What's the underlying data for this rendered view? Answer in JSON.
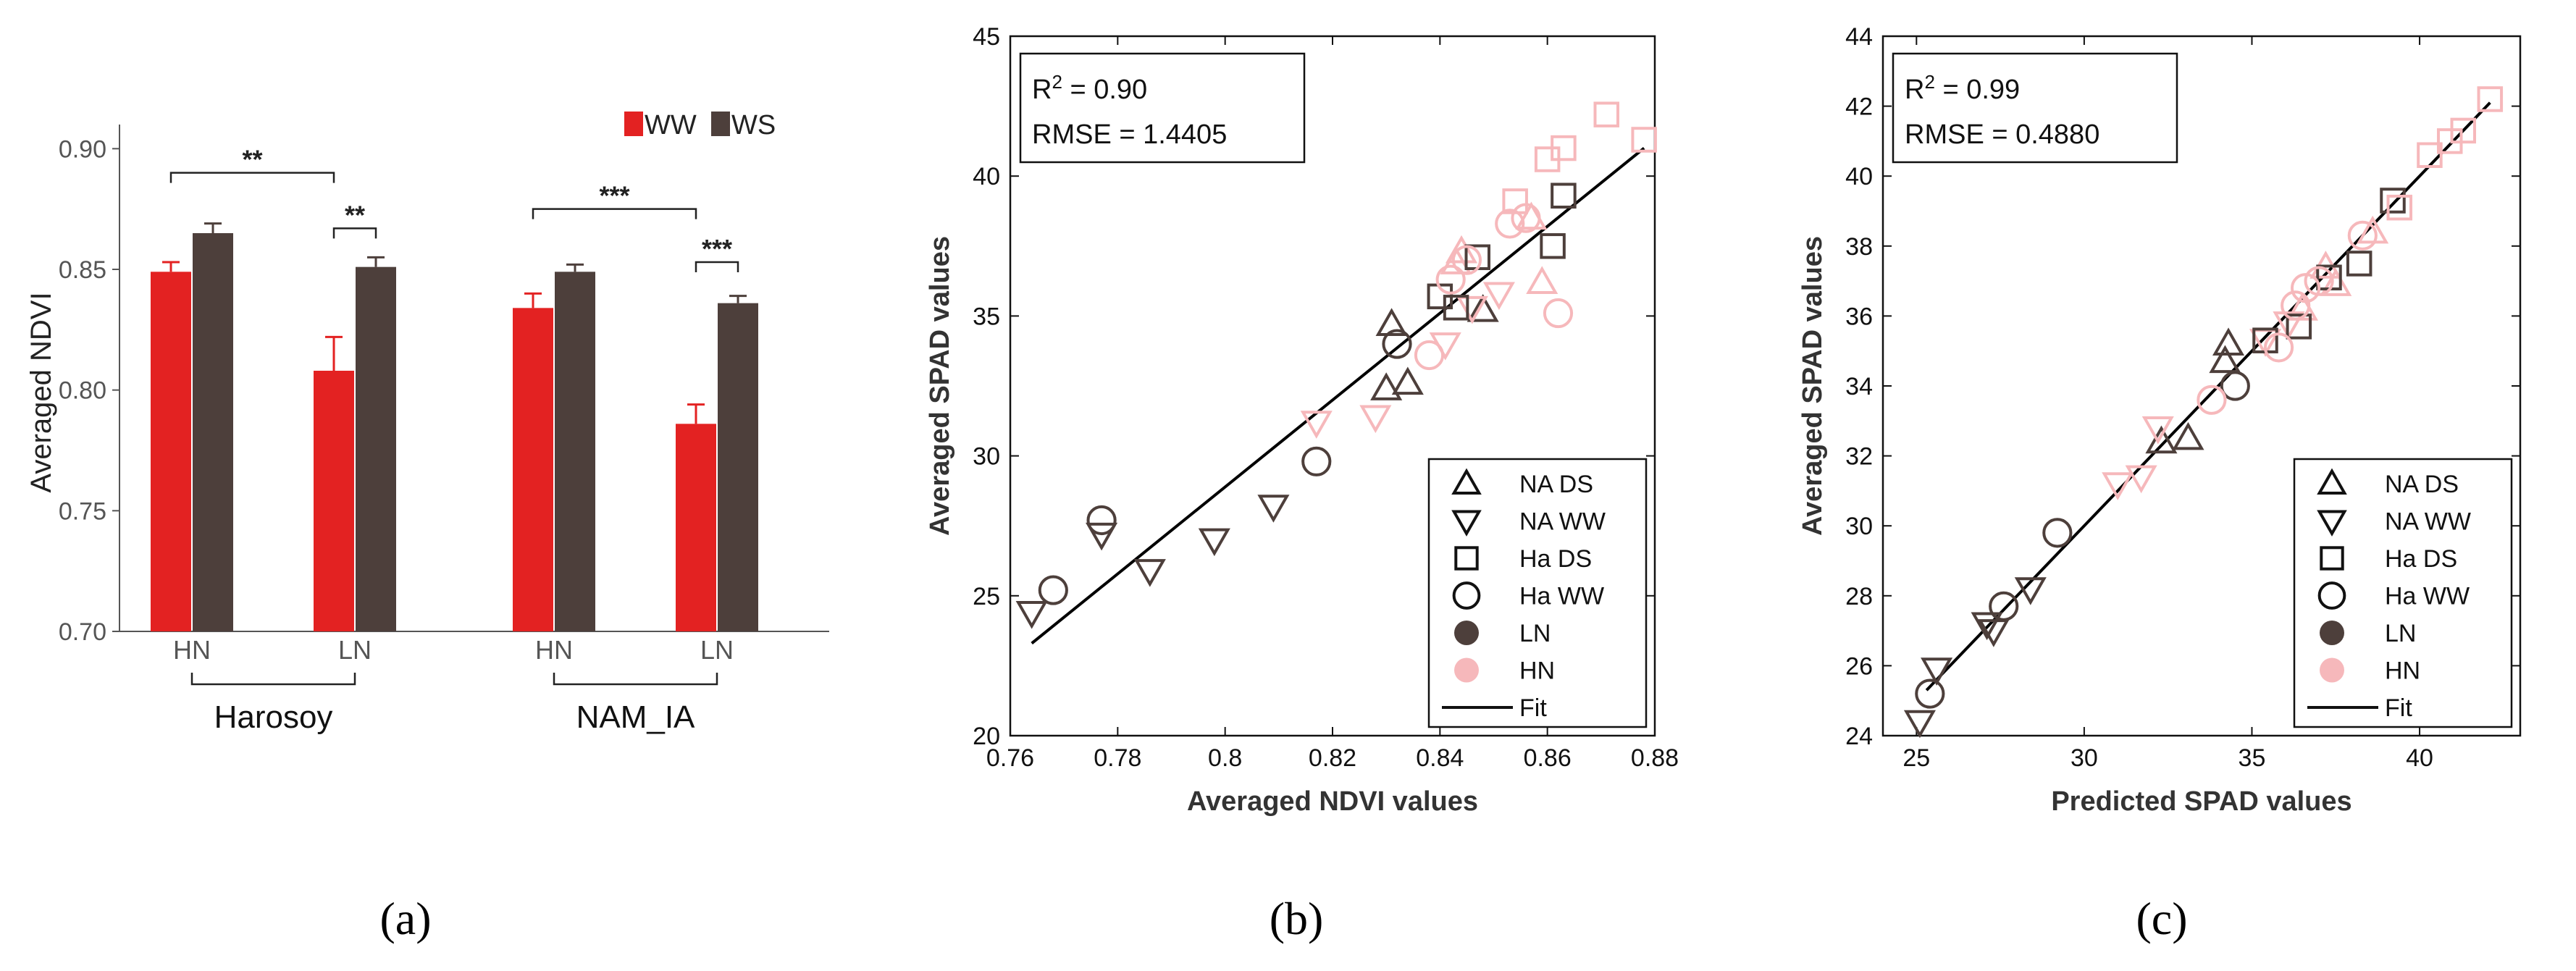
{
  "colors": {
    "ww_red": "#e32222",
    "ws_brown": "#4d3f3b",
    "ln_dark": "#4d3f3b",
    "hn_pink": "#f6b8bb",
    "fit_black": "#000000",
    "axis_gray": "#555555"
  },
  "panels": [
    {
      "label": "(a)"
    },
    {
      "label": "(b)"
    },
    {
      "label": "(c)"
    }
  ],
  "chart_data": [
    {
      "id": "a",
      "type": "bar",
      "ylabel": "Averaged NDVI",
      "ylim": [
        0.7,
        0.91
      ],
      "yticks": [
        0.7,
        0.75,
        0.8,
        0.85,
        0.9
      ],
      "ytick_labels": [
        "0.70",
        "0.75",
        "0.80",
        "0.85",
        "0.90"
      ],
      "categories": [
        "HN",
        "LN",
        "HN",
        "LN"
      ],
      "groups": [
        {
          "label": "Harosoy",
          "span": [
            0,
            1
          ]
        },
        {
          "label": "NAM_IA",
          "span": [
            2,
            3
          ]
        }
      ],
      "series": [
        {
          "name": "WW",
          "color": "#e32222",
          "values": [
            0.849,
            0.808,
            0.834,
            0.786
          ],
          "errors": [
            0.004,
            0.014,
            0.006,
            0.008
          ]
        },
        {
          "name": "WS",
          "color": "#4d3f3b",
          "values": [
            0.865,
            0.851,
            0.849,
            0.836
          ],
          "errors": [
            0.004,
            0.004,
            0.003,
            0.003
          ]
        }
      ],
      "legend": [
        "WW",
        "WS"
      ],
      "legend_position": "top-right",
      "significance": [
        {
          "from": [
            0,
            "WW"
          ],
          "to": [
            1,
            "WW"
          ],
          "level": 0.89,
          "label": "**"
        },
        {
          "from": [
            1,
            "WW"
          ],
          "to": [
            1,
            "WS"
          ],
          "level": 0.867,
          "label": "**"
        },
        {
          "from": [
            2,
            "WW"
          ],
          "to": [
            3,
            "WW"
          ],
          "level": 0.875,
          "label": "***"
        },
        {
          "from": [
            3,
            "WW"
          ],
          "to": [
            3,
            "WS"
          ],
          "level": 0.853,
          "label": "***"
        }
      ]
    },
    {
      "id": "b",
      "type": "scatter",
      "xlabel": "Averaged NDVI values",
      "ylabel": "Averaged SPAD values",
      "xlim": [
        0.76,
        0.88
      ],
      "ylim": [
        20,
        45
      ],
      "xticks": [
        0.76,
        0.78,
        0.8,
        0.82,
        0.84,
        0.86,
        0.88
      ],
      "xtick_labels": [
        "0.76",
        "0.78",
        "0.8",
        "0.82",
        "0.84",
        "0.86",
        "0.88"
      ],
      "yticks": [
        20,
        25,
        30,
        35,
        40,
        45
      ],
      "ytick_labels": [
        "20",
        "25",
        "30",
        "35",
        "40",
        "45"
      ],
      "stats": {
        "r2_prefix": "R",
        "r2_sup": "2",
        "r2_value": " = 0.90",
        "rmse": "RMSE = 1.4405"
      },
      "fit": {
        "x": [
          0.764,
          0.878
        ],
        "y": [
          23.3,
          41.0
        ]
      },
      "legend": [
        "NA DS",
        "NA WW",
        "Ha DS",
        "Ha WW",
        "LN",
        "HN"
      ],
      "legend_fit": "Fit",
      "legend_position": "bottom-right",
      "series": [
        {
          "name": "NA DS LN",
          "marker": "tri-up",
          "color": "#4d3f3b",
          "x": [
            0.831,
            0.83,
            0.834,
            0.848
          ],
          "y": [
            34.7,
            32.4,
            32.6,
            35.2
          ]
        },
        {
          "name": "NA DS HN",
          "marker": "tri-up",
          "color": "#f6b8bb",
          "x": [
            0.844,
            0.857,
            0.859,
            0.843
          ],
          "y": [
            37.3,
            38.5,
            36.2,
            36.9
          ]
        },
        {
          "name": "NA WW LN",
          "marker": "tri-down",
          "color": "#4d3f3b",
          "x": [
            0.764,
            0.777,
            0.786,
            0.798,
            0.809
          ],
          "y": [
            24.4,
            27.2,
            25.9,
            27.0,
            28.2
          ]
        },
        {
          "name": "NA WW HN",
          "marker": "tri-down",
          "color": "#f6b8bb",
          "x": [
            0.817,
            0.828,
            0.841,
            0.846,
            0.851
          ],
          "y": [
            31.2,
            31.4,
            34.0,
            35.3,
            35.8
          ]
        },
        {
          "name": "Ha DS LN",
          "marker": "square",
          "color": "#4d3f3b",
          "x": [
            0.84,
            0.843,
            0.847,
            0.861,
            0.863
          ],
          "y": [
            35.7,
            35.3,
            37.1,
            37.5,
            39.3
          ]
        },
        {
          "name": "Ha DS HN",
          "marker": "square",
          "color": "#f6b8bb",
          "x": [
            0.854,
            0.86,
            0.863,
            0.871,
            0.878
          ],
          "y": [
            39.1,
            40.6,
            41.0,
            42.2,
            41.3
          ]
        },
        {
          "name": "Ha WW LN",
          "marker": "circle",
          "color": "#4d3f3b",
          "x": [
            0.768,
            0.777,
            0.817,
            0.832
          ],
          "y": [
            25.2,
            27.7,
            29.8,
            34.0
          ]
        },
        {
          "name": "Ha WW HN",
          "marker": "circle",
          "color": "#f6b8bb",
          "x": [
            0.838,
            0.842,
            0.853,
            0.862,
            0.856,
            0.845
          ],
          "y": [
            33.6,
            36.3,
            38.3,
            35.1,
            38.5,
            37.0
          ]
        }
      ]
    },
    {
      "id": "c",
      "type": "scatter",
      "xlabel": "Predicted SPAD values",
      "ylabel": "Averaged SPAD values",
      "xlim": [
        24,
        43
      ],
      "ylim": [
        24,
        44
      ],
      "xticks": [
        25,
        30,
        35,
        40
      ],
      "xtick_labels": [
        "25",
        "30",
        "35",
        "40"
      ],
      "yticks": [
        24,
        26,
        28,
        30,
        32,
        34,
        36,
        38,
        40,
        42,
        44
      ],
      "ytick_labels": [
        "24",
        "26",
        "28",
        "30",
        "32",
        "34",
        "36",
        "38",
        "40",
        "42",
        "44"
      ],
      "stats": {
        "r2_prefix": "R",
        "r2_sup": "2",
        "r2_value": " = 0.99",
        "rmse": "RMSE = 0.4880"
      },
      "fit": {
        "x": [
          25.3,
          42.1
        ],
        "y": [
          25.3,
          42.1
        ]
      },
      "legend": [
        "NA DS",
        "NA WW",
        "Ha DS",
        "Ha WW",
        "LN",
        "HN"
      ],
      "legend_fit": "Fit",
      "legend_position": "bottom-right",
      "series": [
        {
          "name": "NA DS LN",
          "marker": "tri-up",
          "color": "#4d3f3b",
          "x": [
            34.3,
            32.3,
            33.1,
            34.2
          ],
          "y": [
            35.2,
            32.4,
            32.5,
            34.7
          ]
        },
        {
          "name": "NA DS HN",
          "marker": "tri-up",
          "color": "#f6b8bb",
          "x": [
            37.2,
            37.5,
            36.5,
            38.6
          ],
          "y": [
            37.4,
            36.9,
            36.2,
            38.4
          ]
        },
        {
          "name": "NA WW LN",
          "marker": "tri-down",
          "color": "#4d3f3b",
          "x": [
            25.1,
            25.6,
            27.1,
            27.3,
            28.4
          ],
          "y": [
            24.4,
            25.9,
            27.2,
            27.0,
            28.2
          ]
        },
        {
          "name": "NA WW HN",
          "marker": "tri-down",
          "color": "#f6b8bb",
          "x": [
            31.0,
            31.7,
            32.2,
            35.4,
            36.1
          ],
          "y": [
            31.2,
            31.4,
            32.8,
            35.3,
            35.8
          ]
        },
        {
          "name": "Ha DS LN",
          "marker": "square",
          "color": "#4d3f3b",
          "x": [
            35.4,
            36.4,
            37.3,
            38.2,
            39.2
          ],
          "y": [
            35.3,
            35.7,
            37.1,
            37.5,
            39.3
          ]
        },
        {
          "name": "Ha DS HN",
          "marker": "square",
          "color": "#f6b8bb",
          "x": [
            39.4,
            40.3,
            40.9,
            41.3,
            42.1
          ],
          "y": [
            39.1,
            40.6,
            41.0,
            41.3,
            42.2
          ]
        },
        {
          "name": "Ha WW LN",
          "marker": "circle",
          "color": "#4d3f3b",
          "x": [
            25.4,
            27.6,
            29.2,
            34.5
          ],
          "y": [
            25.2,
            27.7,
            29.8,
            34.0
          ]
        },
        {
          "name": "Ha WW HN",
          "marker": "circle",
          "color": "#f6b8bb",
          "x": [
            33.8,
            35.8,
            36.3,
            36.6,
            37.0,
            38.3
          ],
          "y": [
            33.6,
            35.1,
            36.3,
            36.8,
            37.0,
            38.3
          ]
        }
      ]
    }
  ]
}
